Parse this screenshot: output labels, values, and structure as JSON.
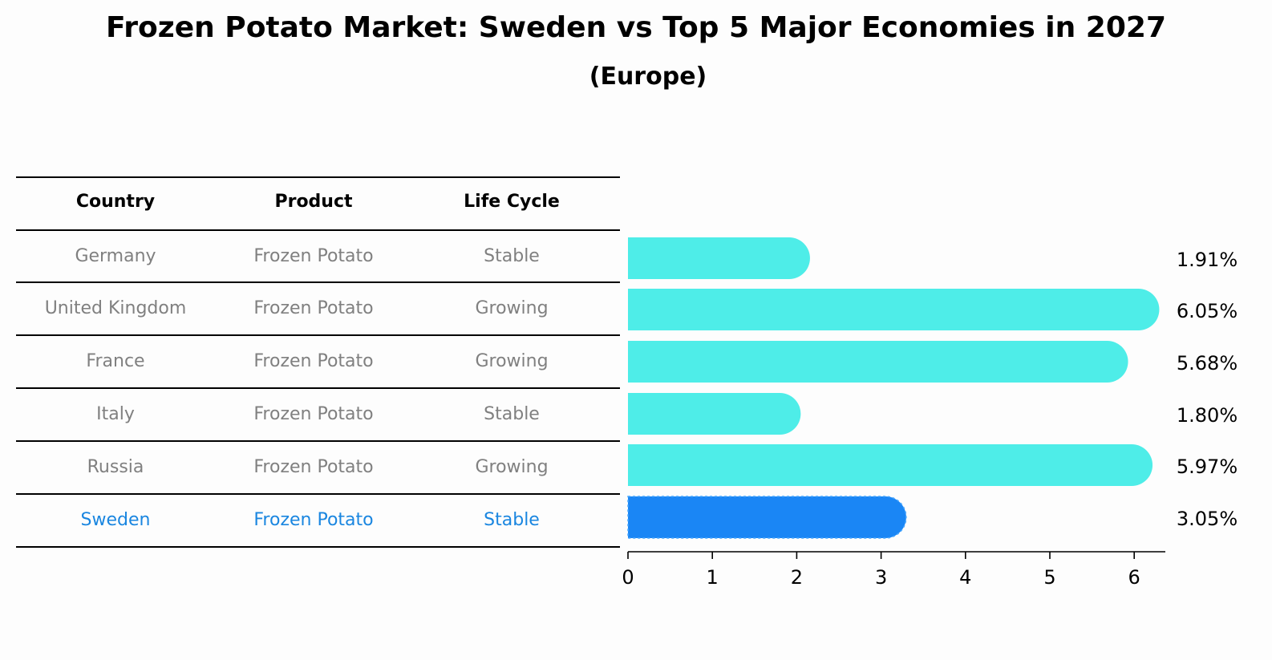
{
  "title": "Frozen Potato Market: Sweden vs Top 5 Major Economies in 2027",
  "subtitle": "(Europe)",
  "table": {
    "headers": [
      "Country",
      "Product",
      "Life Cycle"
    ],
    "rows": [
      [
        "Germany",
        "Frozen Potato",
        "Stable"
      ],
      [
        "United Kingdom",
        "Frozen Potato",
        "Growing"
      ],
      [
        "France",
        "Frozen Potato",
        "Growing"
      ],
      [
        "Italy",
        "Frozen Potato",
        "Stable"
      ],
      [
        "Russia",
        "Frozen Potato",
        "Growing"
      ],
      [
        "Sweden",
        "Frozen Potato",
        "Stable"
      ]
    ],
    "highlight_row": "Sweden"
  },
  "colors": {
    "bar": "#4eede8",
    "highlight": "#1a86f5",
    "table_text": "#808080",
    "highlight_text": "#1a86e0"
  },
  "chart_data": {
    "type": "bar",
    "orientation": "horizontal",
    "categories": [
      "Germany",
      "United Kingdom",
      "France",
      "Italy",
      "Russia",
      "Sweden"
    ],
    "values": [
      1.91,
      6.05,
      5.68,
      1.8,
      5.97,
      3.05
    ],
    "value_labels": [
      "1.91%",
      "6.05%",
      "5.68%",
      "1.80%",
      "5.97%",
      "3.05%"
    ],
    "xticks": [
      "0",
      "1",
      "2",
      "3",
      "4",
      "5",
      "6"
    ],
    "xlim": [
      0,
      6.35
    ],
    "highlight": "Sweden",
    "grid": false
  }
}
